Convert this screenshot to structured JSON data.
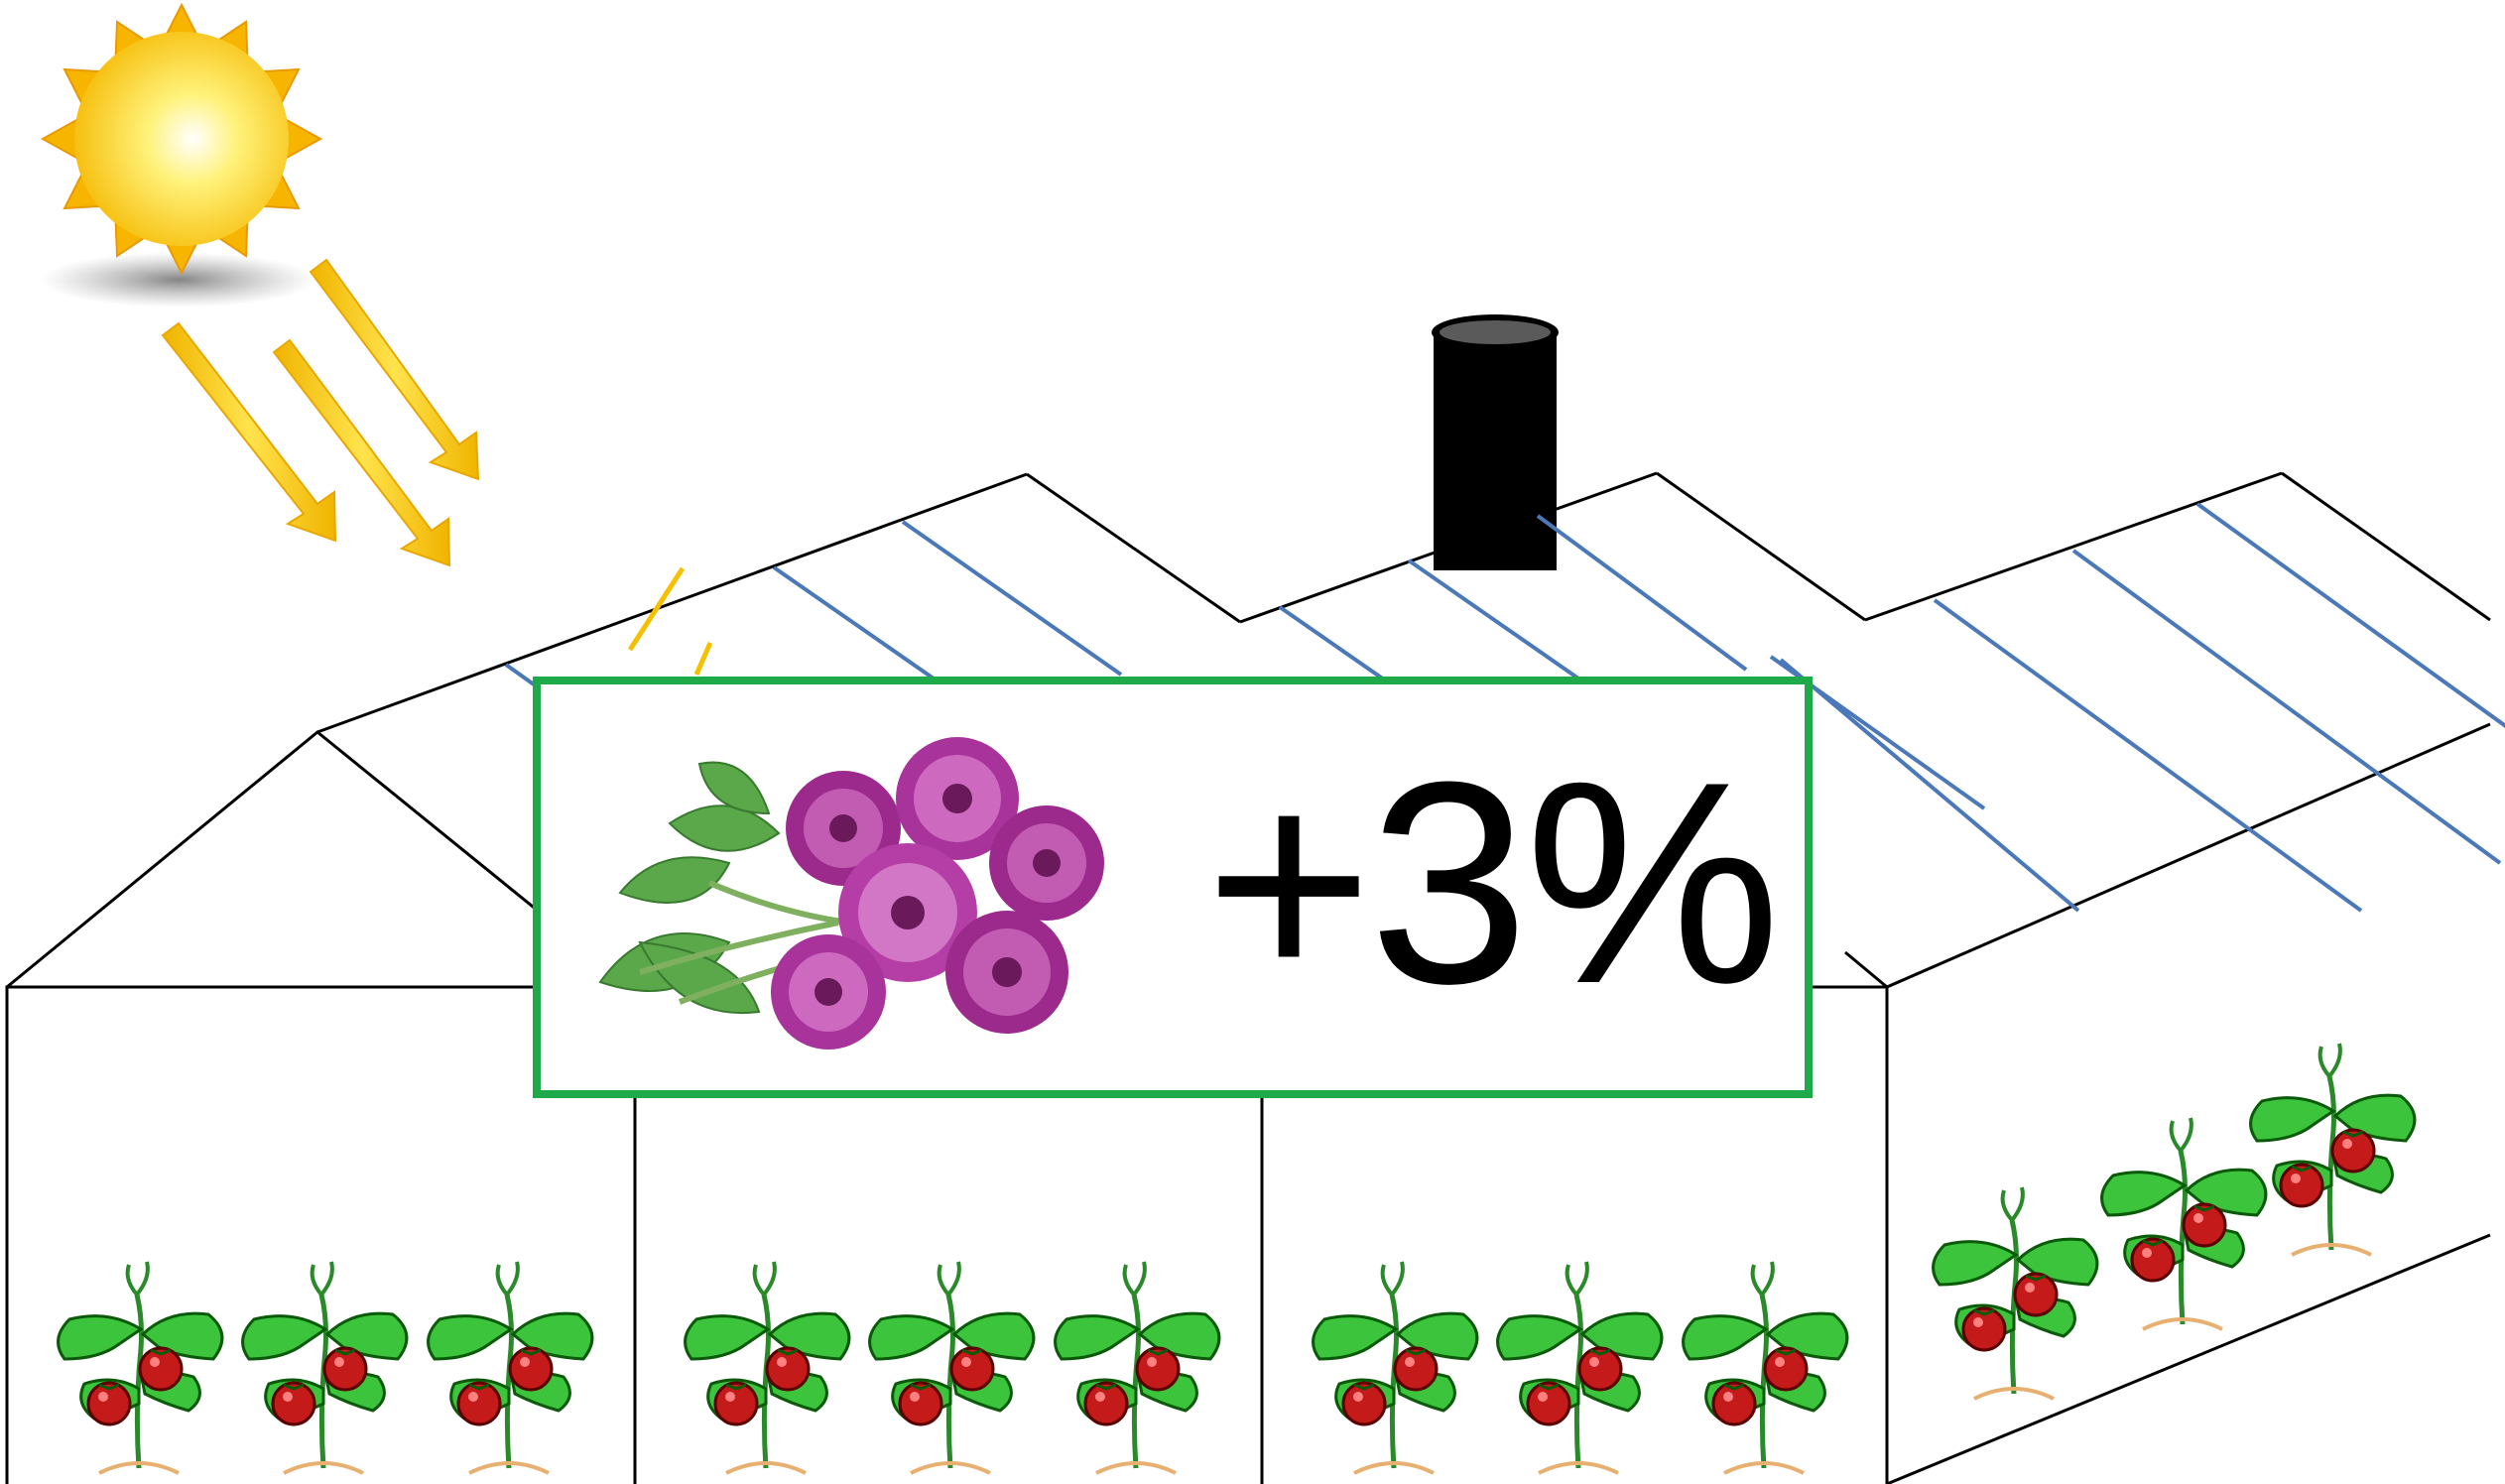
{
  "callout": {
    "value_label": "+3%",
    "border_color": "#1faa4a",
    "image_icon": "chrysanthemum-bouquet-icon"
  },
  "scene": {
    "sun_icon": "sun-icon",
    "sun_rays": 3,
    "chimney_icon": "chimney-icon",
    "plant_icon": "tomato-plant-icon",
    "greenhouse_bays": 3,
    "plants_per_bay": 3,
    "side_plants": 3,
    "colors": {
      "ray": "#f5c800",
      "panel_line": "#4a78b8",
      "outline": "#000000",
      "sun": "#ffd21a"
    }
  }
}
